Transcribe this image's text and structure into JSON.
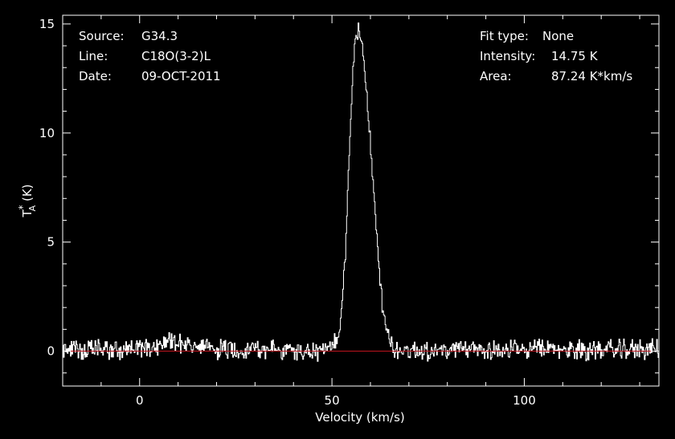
{
  "chart_data": {
    "type": "line",
    "xlabel": "Velocity (km/s)",
    "ylabel": "T",
    "ylabel_super": "*",
    "ylabel_sub": "A",
    "ylabel_unit": " (K)",
    "xlim": [
      -20,
      135
    ],
    "ylim": [
      -1.6,
      15.4
    ],
    "x_ticks": [
      0,
      50,
      100
    ],
    "y_ticks": [
      0,
      5,
      10,
      15
    ],
    "grid": false,
    "background": "#000000",
    "axis_color": "#ffffff",
    "line_color": "#ffffff",
    "baseline_color": "#c0141e",
    "baseline_value": 0,
    "info_left": [
      {
        "label": "Source:",
        "value": "G34.3"
      },
      {
        "label": "Line:",
        "value": "C18O(3-2)L"
      },
      {
        "label": "Date:",
        "value": "09-OCT-2011"
      }
    ],
    "info_right": [
      {
        "label": "Fit type:",
        "value": "None"
      },
      {
        "label": "Intensity:",
        "value": "14.75 K"
      },
      {
        "label": "Area:",
        "value": "87.24 K*km/s"
      }
    ],
    "series": [
      {
        "x": [
          -20,
          -15,
          -10,
          -5,
          0,
          5,
          6,
          8,
          10,
          12,
          15,
          20,
          25,
          30,
          35,
          40,
          45,
          50,
          51.5,
          52.5,
          53.5,
          54.5,
          55.2,
          55.8,
          56.3,
          56.8,
          57.3,
          57.8,
          58.3,
          58.8,
          59.3,
          60,
          60.8,
          61.5,
          62.2,
          63,
          63.8,
          64.5,
          65.2,
          66,
          67,
          70,
          75,
          80,
          85,
          90,
          95,
          100,
          105,
          110,
          115,
          120,
          125,
          130,
          135
        ],
        "y": [
          0.1,
          0.05,
          0.08,
          0.05,
          0.1,
          0.25,
          0.4,
          0.5,
          0.45,
          0.3,
          0.15,
          0.1,
          0.05,
          0.15,
          0.05,
          0,
          -0.05,
          0.1,
          0.6,
          2.0,
          5.0,
          9.5,
          12.5,
          13.8,
          14.4,
          14.75,
          14.6,
          14.1,
          13.3,
          12.2,
          10.8,
          9.2,
          7.3,
          5.4,
          3.8,
          2.2,
          1.2,
          0.6,
          0.3,
          0.1,
          0.05,
          0.05,
          0.05,
          0,
          0.05,
          0.1,
          0.05,
          0.05,
          0.1,
          0.05,
          0.05,
          0.1,
          0.05,
          0.1,
          0.1
        ]
      }
    ]
  }
}
